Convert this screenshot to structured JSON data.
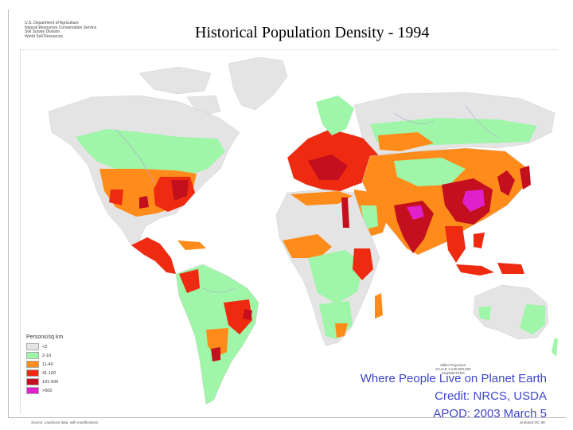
{
  "title": "Historical Population Density - 1994",
  "agency": {
    "line1": "U.S. Department of Agriculture",
    "line2": "Natural Resources Conservation Service",
    "line3": "Soil Survey Division",
    "line4": "World Soil Resources"
  },
  "legend": {
    "title": "Persons/sq km",
    "items": [
      {
        "label": "<2",
        "color": "#e4e4e4"
      },
      {
        "label": "2-10",
        "color": "#9ff5a8"
      },
      {
        "label": "11-40",
        "color": "#ff8c1a"
      },
      {
        "label": "41-100",
        "color": "#ee2a10"
      },
      {
        "label": "101-500",
        "color": "#c30f1e"
      },
      {
        "label": ">500",
        "color": "#e020c8"
      }
    ]
  },
  "map_colors": {
    "ocean": "#ffffff",
    "rivers": "#b4a7d6"
  },
  "scale": {
    "projection": "Miller Projection",
    "ratio": "SCALE 1:130,000,000",
    "unit": "KILOMETERS"
  },
  "source_note": "Source: Landscan data, with modifications",
  "corner_note": "worldsoil OC 98",
  "credit": {
    "line1": "Where People Live on Planet Earth",
    "line2": "Credit: NRCS, USDA",
    "line3": "APOD: 2003 March 5"
  }
}
